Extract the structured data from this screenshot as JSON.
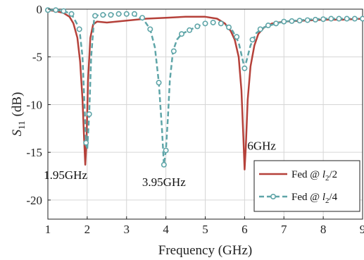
{
  "chart_data": {
    "type": "line",
    "xlabel": "Frequency (GHz)",
    "ylabel": {
      "main": "S",
      "sub": "11",
      "unit": "(dB)"
    },
    "xlim": [
      1,
      9
    ],
    "ylim": [
      -22,
      0
    ],
    "xticks": [
      1,
      2,
      3,
      4,
      5,
      6,
      7,
      8,
      9
    ],
    "yticks": [
      0,
      -5,
      -10,
      -15,
      -20
    ],
    "grid": true,
    "legend_position": "bottom-right",
    "series": [
      {
        "name": "Fed @ l2/2",
        "legend_label": {
          "prefix": "Fed @ ",
          "var": "l",
          "sub": "2",
          "suffix": "/2"
        },
        "color": "#b5413a",
        "style": "solid",
        "marker": "none",
        "x": [
          1.0,
          1.2,
          1.4,
          1.55,
          1.65,
          1.75,
          1.82,
          1.88,
          1.92,
          1.95,
          1.98,
          2.02,
          2.08,
          2.15,
          2.25,
          2.5,
          3.0,
          3.5,
          4.0,
          4.5,
          5.0,
          5.3,
          5.5,
          5.65,
          5.75,
          5.85,
          5.92,
          5.97,
          6.0,
          6.03,
          6.08,
          6.15,
          6.25,
          6.35,
          6.5,
          6.7,
          7.0,
          7.5,
          8.0,
          8.5,
          9.0
        ],
        "y": [
          -0.1,
          -0.2,
          -0.4,
          -0.8,
          -1.5,
          -3.0,
          -5.5,
          -9.5,
          -13.5,
          -16.3,
          -14.0,
          -7.5,
          -3.0,
          -1.6,
          -1.3,
          -1.4,
          -1.2,
          -1.0,
          -0.9,
          -0.8,
          -0.8,
          -1.0,
          -1.5,
          -2.3,
          -3.2,
          -5.0,
          -8.5,
          -13.5,
          -16.8,
          -14.5,
          -9.5,
          -6.0,
          -3.8,
          -2.6,
          -1.9,
          -1.5,
          -1.3,
          -1.2,
          -1.1,
          -1.1,
          -1.0
        ]
      },
      {
        "name": "Fed @ l2/4",
        "legend_label": {
          "prefix": "Fed @ ",
          "var": "l",
          "sub": "2",
          "suffix": "/4"
        },
        "color": "#5fa5a8",
        "style": "dashed",
        "marker": "circle",
        "x": [
          1.0,
          1.2,
          1.4,
          1.6,
          1.8,
          1.88,
          1.93,
          1.97,
          2.0,
          2.05,
          2.1,
          2.18,
          2.3,
          2.5,
          2.7,
          2.9,
          3.1,
          3.3,
          3.45,
          3.6,
          3.72,
          3.82,
          3.9,
          3.95,
          4.0,
          4.05,
          4.1,
          4.18,
          4.28,
          4.4,
          4.6,
          4.8,
          5.0,
          5.3,
          5.5,
          5.7,
          5.85,
          5.95,
          6.0,
          6.05,
          6.15,
          6.3,
          6.5,
          6.8,
          7.0,
          7.3,
          7.6,
          8.0,
          8.5,
          9.0
        ],
        "y": [
          -0.1,
          -0.1,
          -0.2,
          -0.5,
          -2.0,
          -5.0,
          -10.0,
          -14.0,
          -14.7,
          -11.0,
          -5.0,
          -0.8,
          -0.6,
          -0.6,
          -0.5,
          -0.5,
          -0.5,
          -0.8,
          -1.2,
          -2.1,
          -4.0,
          -7.7,
          -12.5,
          -16.3,
          -14.8,
          -11.5,
          -7.5,
          -4.4,
          -3.2,
          -2.6,
          -2.2,
          -1.8,
          -1.5,
          -1.4,
          -1.6,
          -2.3,
          -3.5,
          -5.3,
          -6.2,
          -5.4,
          -3.8,
          -2.5,
          -1.9,
          -1.5,
          -1.3,
          -1.2,
          -1.1,
          -1.0,
          -1.0,
          -1.0
        ],
        "marker_x": [
          1.0,
          1.2,
          1.4,
          1.6,
          1.8,
          1.97,
          2.05,
          2.2,
          2.4,
          2.6,
          2.8,
          3.0,
          3.2,
          3.4,
          3.6,
          3.82,
          3.95,
          4.0,
          4.2,
          4.4,
          4.6,
          4.8,
          5.0,
          5.2,
          5.4,
          5.6,
          5.8,
          6.0,
          6.2,
          6.4,
          6.6,
          6.8,
          7.0,
          7.2,
          7.4,
          7.6,
          7.8,
          8.0,
          8.2,
          8.4,
          8.6,
          8.8,
          9.0
        ],
        "marker_y": [
          -0.1,
          -0.1,
          -0.2,
          -0.5,
          -2.1,
          -14.0,
          -11.0,
          -0.7,
          -0.6,
          -0.6,
          -0.5,
          -0.5,
          -0.5,
          -0.9,
          -2.1,
          -7.7,
          -16.3,
          -14.8,
          -4.4,
          -2.6,
          -2.2,
          -1.8,
          -1.5,
          -1.4,
          -1.5,
          -1.9,
          -2.9,
          -6.2,
          -3.2,
          -2.1,
          -1.7,
          -1.5,
          -1.3,
          -1.25,
          -1.2,
          -1.15,
          -1.1,
          -1.05,
          -1.0,
          -1.0,
          -1.0,
          -1.0,
          -1.0
        ]
      }
    ],
    "annotations": [
      {
        "text": "1.95GHz",
        "x": 1.95,
        "y": -16.3
      },
      {
        "text": "3.95GHz",
        "x": 3.95,
        "y": -16.3
      },
      {
        "text": "6GHz",
        "x": 6.0,
        "y": -16.8
      }
    ]
  }
}
